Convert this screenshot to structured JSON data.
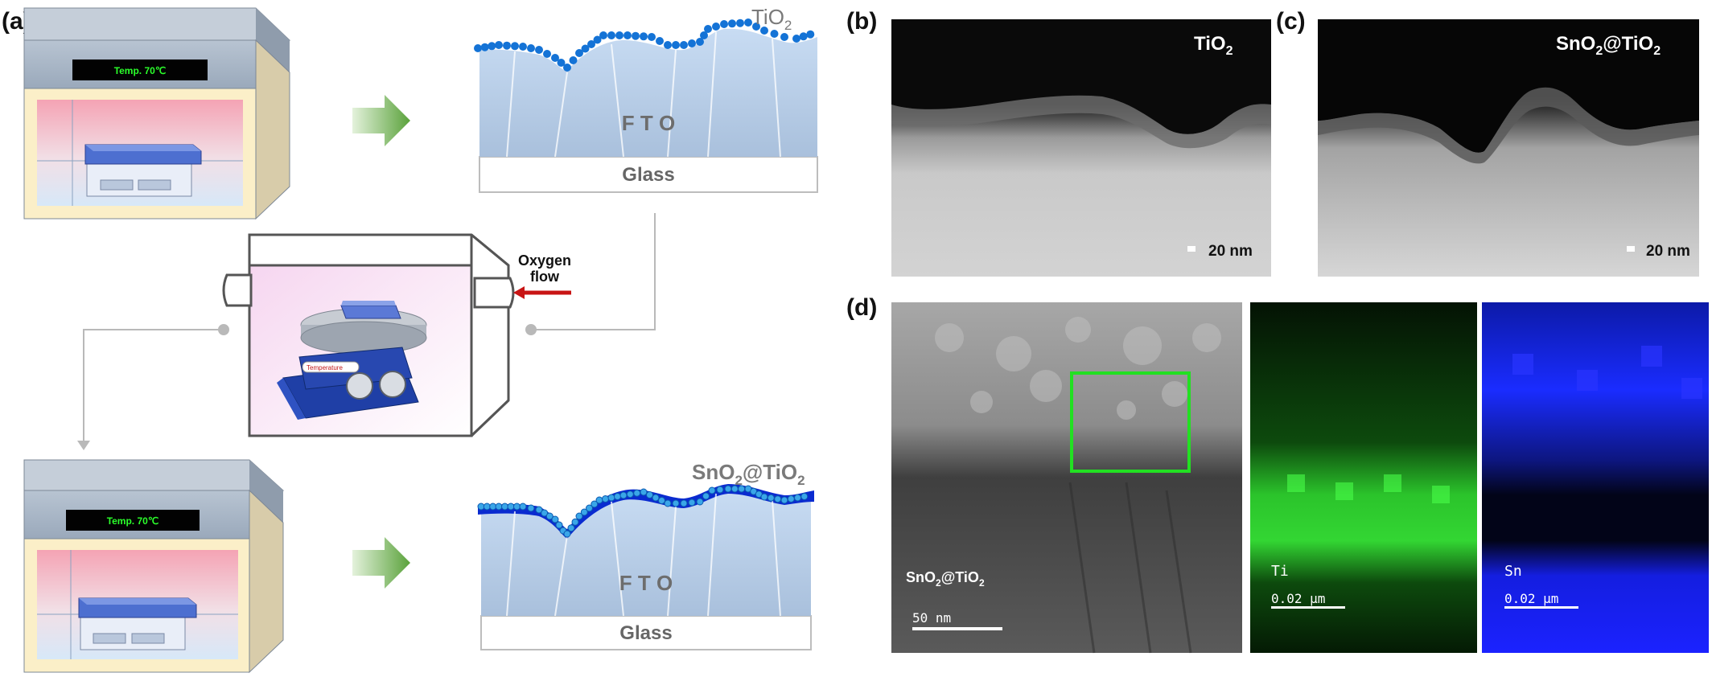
{
  "panels": {
    "a": "(a)",
    "b": "(b)",
    "c": "(c)",
    "d": "(d)"
  },
  "schematic": {
    "oven_display_top": "Temp.  70℃",
    "oven_display_bottom": "Temp.  70℃",
    "layer_top_label": "TiO",
    "layer_top_sub": "2",
    "layer_bottom_label_a": "SnO",
    "layer_bottom_sub_a": "2",
    "layer_bottom_label_b": "@TiO",
    "layer_bottom_sub_b": "2",
    "fto": "F T O",
    "glass": "Glass",
    "oxygen_line1": "Oxygen",
    "oxygen_line2": "flow",
    "hotplate_label": "Temperature"
  },
  "micrographs": {
    "b_label_main": "TiO",
    "b_label_sub": "2",
    "b_scale": "20 nm",
    "c_label_a": "SnO",
    "c_label_sub_a": "2",
    "c_label_b": "@TiO",
    "c_label_sub_b": "2",
    "c_scale": "20 nm",
    "d_label_a": "SnO",
    "d_label_sub_a": "2",
    "d_label_b": "@TiO",
    "d_label_sub_b": "2",
    "d_scale": "50 nm",
    "ti_label": "Ti",
    "ti_scale": "0.02 μm",
    "sn_label": "Sn",
    "sn_scale": "0.02 μm"
  },
  "colors": {
    "tio2_dots": "#1473d6",
    "sno2_layer": "#0a2bd0",
    "ti_map": "#2fd12f",
    "sn_map": "#1b22ff",
    "oxygen_arrow": "#c81414",
    "process_arrow": "#6ab04c",
    "display_text": "#2bff2b"
  }
}
